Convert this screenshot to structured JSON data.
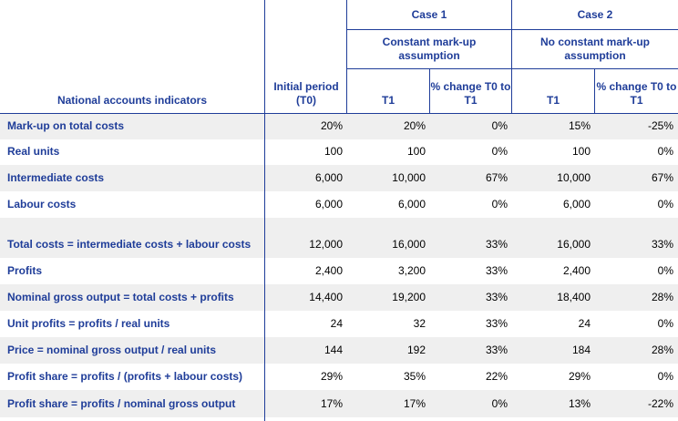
{
  "header": {
    "indicators": "National accounts indicators",
    "initial_period": "Initial period (T0)",
    "case1": "Case 1",
    "case2": "Case 2",
    "case1_sub": "Constant mark-up assumption",
    "case2_sub": "No constant mark-up assumption",
    "t1": "T1",
    "pct_change": "% change T0 to T1"
  },
  "rows": [
    {
      "label": "Mark-up on total costs",
      "t0": "20%",
      "c1_t1": "20%",
      "c1_pct": "0%",
      "c2_t1": "15%",
      "c2_pct": "-25%"
    },
    {
      "label": "Real units",
      "t0": "100",
      "c1_t1": "100",
      "c1_pct": "0%",
      "c2_t1": "100",
      "c2_pct": "0%"
    },
    {
      "label": "Intermediate costs",
      "t0": "6,000",
      "c1_t1": "10,000",
      "c1_pct": "67%",
      "c2_t1": "10,000",
      "c2_pct": "67%"
    },
    {
      "label": "Labour costs",
      "t0": "6,000",
      "c1_t1": "6,000",
      "c1_pct": "0%",
      "c2_t1": "6,000",
      "c2_pct": "0%"
    },
    {
      "label": "Total costs = intermediate costs + labour costs",
      "t0": "12,000",
      "c1_t1": "16,000",
      "c1_pct": "33%",
      "c2_t1": "16,000",
      "c2_pct": "33%"
    },
    {
      "label": "Profits",
      "t0": "2,400",
      "c1_t1": "3,200",
      "c1_pct": "33%",
      "c2_t1": "2,400",
      "c2_pct": "0%"
    },
    {
      "label": "Nominal gross output = total costs + profits",
      "t0": "14,400",
      "c1_t1": "19,200",
      "c1_pct": "33%",
      "c2_t1": "18,400",
      "c2_pct": "28%"
    },
    {
      "label": "Unit profits = profits / real units",
      "t0": "24",
      "c1_t1": "32",
      "c1_pct": "33%",
      "c2_t1": "24",
      "c2_pct": "0%"
    },
    {
      "label": "Price = nominal gross output / real units",
      "t0": "144",
      "c1_t1": "192",
      "c1_pct": "33%",
      "c2_t1": "184",
      "c2_pct": "28%"
    },
    {
      "label": "Profit share = profits / (profits + labour costs)",
      "t0": "29%",
      "c1_t1": "35%",
      "c1_pct": "22%",
      "c2_t1": "29%",
      "c2_pct": "0%"
    },
    {
      "label": "Profit share = profits / nominal gross output",
      "t0": "17%",
      "c1_t1": "17%",
      "c1_pct": "0%",
      "c2_t1": "13%",
      "c2_pct": "-22%"
    }
  ]
}
